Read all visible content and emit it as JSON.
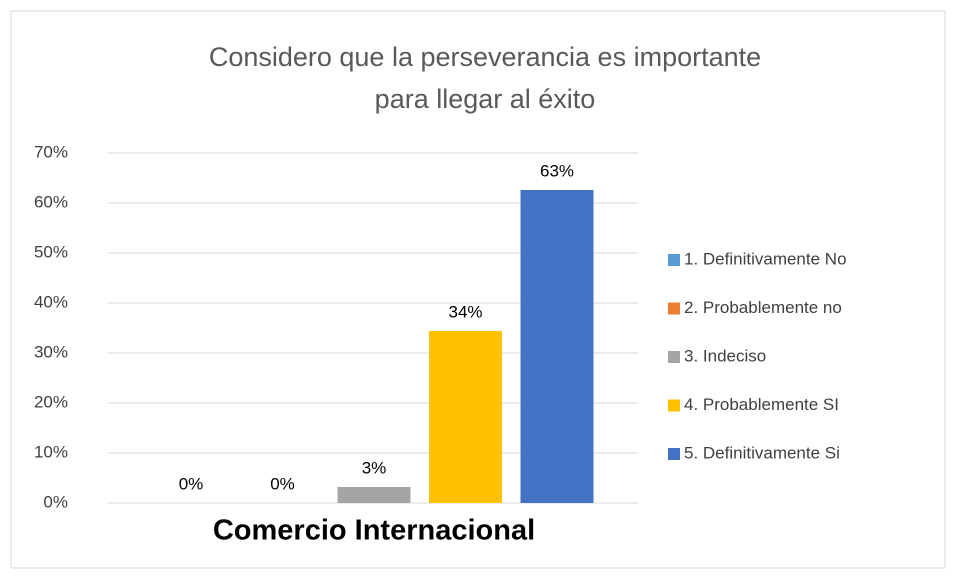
{
  "chart_data": {
    "type": "bar",
    "title": "Considero que la perseverancia es importante para llegar al éxito",
    "categories": [
      "Comercio Internacional"
    ],
    "series": [
      {
        "name": "1. Definitivamente No",
        "color": "#5b9bd5",
        "values": [
          0
        ],
        "value_labels": [
          "0%"
        ]
      },
      {
        "name": "2. Probablemente no",
        "color": "#ed7d31",
        "values": [
          0
        ],
        "value_labels": [
          "0%"
        ]
      },
      {
        "name": "3. Indeciso",
        "color": "#a5a5a5",
        "values": [
          3.2
        ],
        "value_labels": [
          "3%"
        ]
      },
      {
        "name": "4. Probablemente SI",
        "color": "#ffc000",
        "values": [
          34.4
        ],
        "value_labels": [
          "34%"
        ]
      },
      {
        "name": "5. Definitivamente Si",
        "color": "#4472c4",
        "values": [
          62.6
        ],
        "value_labels": [
          "63%"
        ]
      }
    ],
    "ylim": [
      0,
      70
    ],
    "yticks": [
      {
        "value": 0,
        "label": "0%"
      },
      {
        "value": 10,
        "label": "10%"
      },
      {
        "value": 20,
        "label": "20%"
      },
      {
        "value": 30,
        "label": "30%"
      },
      {
        "value": 40,
        "label": "40%"
      },
      {
        "value": 50,
        "label": "50%"
      },
      {
        "value": 60,
        "label": "60%"
      },
      {
        "value": 70,
        "label": "70%"
      }
    ],
    "grid": true,
    "legend": "right"
  }
}
